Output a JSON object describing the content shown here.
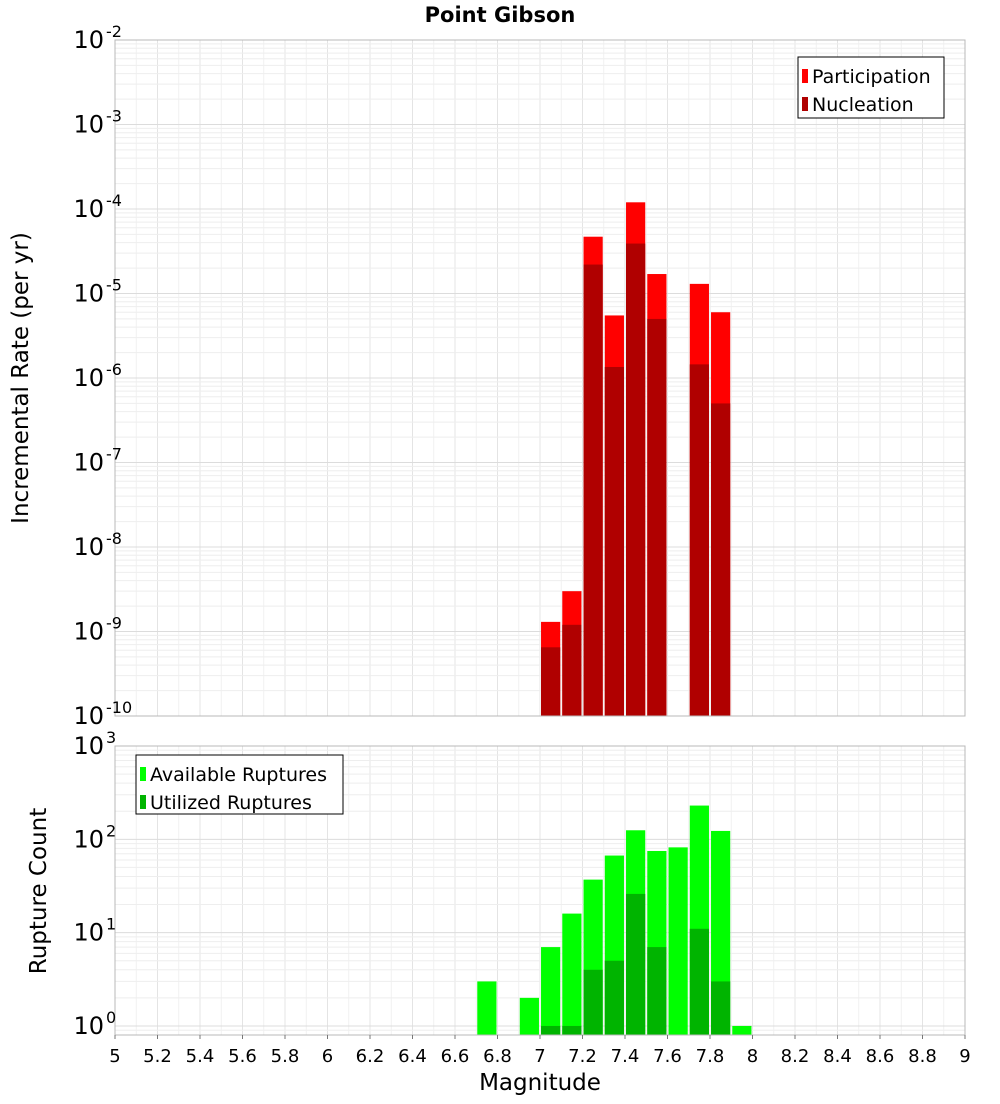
{
  "chart_data": [
    {
      "type": "bar",
      "title": "Point Gibson",
      "ylabel": "Incremental Rate (per yr)",
      "yscale": "log",
      "ylim": [
        1e-10,
        0.01
      ],
      "xlim": [
        5,
        9
      ],
      "grid": true,
      "legend_position": "top-right",
      "overlay": true,
      "x": [
        7.05,
        7.15,
        7.25,
        7.35,
        7.45,
        7.55,
        7.65,
        7.75,
        7.85
      ],
      "series": [
        {
          "name": "Participation",
          "color": "#ff0000",
          "values": [
            1.3e-09,
            3e-09,
            4.7e-05,
            5.5e-06,
            0.00012,
            1.7e-05,
            null,
            1.3e-05,
            6e-06
          ]
        },
        {
          "name": "Nucleation",
          "color": "#b00000",
          "values": [
            6.5e-10,
            1.2e-09,
            2.2e-05,
            1.35e-06,
            3.9e-05,
            5e-06,
            null,
            1.45e-06,
            5e-07
          ]
        }
      ],
      "y_ticks": [
        {
          "base": "10",
          "exp": "-10"
        },
        {
          "base": "10",
          "exp": "-9"
        },
        {
          "base": "10",
          "exp": "-8"
        },
        {
          "base": "10",
          "exp": "-7"
        },
        {
          "base": "10",
          "exp": "-6"
        },
        {
          "base": "10",
          "exp": "-5"
        },
        {
          "base": "10",
          "exp": "-4"
        },
        {
          "base": "10",
          "exp": "-3"
        },
        {
          "base": "10",
          "exp": "-2"
        }
      ]
    },
    {
      "type": "bar",
      "xlabel": "Magnitude",
      "ylabel": "Rupture Count",
      "yscale": "log",
      "ylim": [
        0.8,
        1000
      ],
      "xlim": [
        5,
        9
      ],
      "grid": true,
      "legend_position": "top-left",
      "overlay": true,
      "x": [
        6.75,
        6.95,
        7.05,
        7.15,
        7.25,
        7.35,
        7.45,
        7.55,
        7.65,
        7.75,
        7.85,
        7.95
      ],
      "series": [
        {
          "name": "Available Ruptures",
          "color": "#00ff00",
          "values": [
            3,
            2,
            7,
            16,
            37,
            67,
            125,
            75,
            82,
            230,
            123,
            1
          ]
        },
        {
          "name": "Utilized Ruptures",
          "color": "#00b400",
          "values": [
            null,
            null,
            1,
            1,
            4,
            5,
            26,
            7,
            null,
            11,
            3,
            null
          ]
        }
      ],
      "x_ticks": [
        "5",
        "5.2",
        "5.4",
        "5.6",
        "5.8",
        "6",
        "6.2",
        "6.4",
        "6.6",
        "6.8",
        "7",
        "7.2",
        "7.4",
        "7.6",
        "7.8",
        "8",
        "8.2",
        "8.4",
        "8.6",
        "8.8",
        "9"
      ],
      "y_ticks": [
        {
          "base": "10",
          "exp": "0"
        },
        {
          "base": "10",
          "exp": "1"
        },
        {
          "base": "10",
          "exp": "2"
        },
        {
          "base": "10",
          "exp": "3"
        }
      ]
    }
  ]
}
